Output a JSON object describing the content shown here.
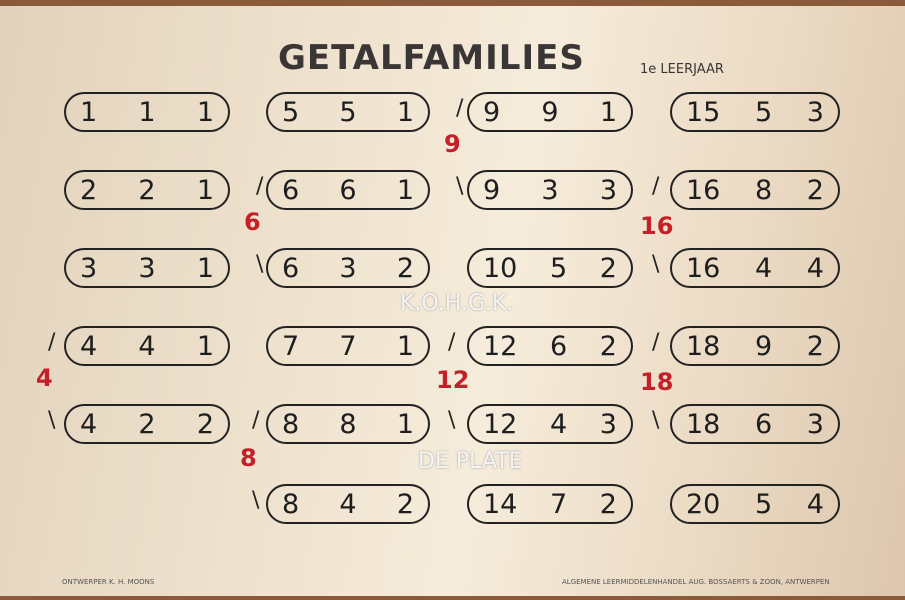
{
  "title": "GETALFAMILIES",
  "grade": "1e LEERJAAR",
  "columns": [
    [
      [
        "1",
        "1",
        "1"
      ],
      [
        "2",
        "2",
        "1"
      ],
      [
        "3",
        "3",
        "1"
      ],
      [
        "4",
        "4",
        "1"
      ],
      [
        "4",
        "2",
        "2"
      ]
    ],
    [
      [
        "5",
        "5",
        "1"
      ],
      [
        "6",
        "6",
        "1"
      ],
      [
        "6",
        "3",
        "2"
      ],
      [
        "7",
        "7",
        "1"
      ],
      [
        "8",
        "8",
        "1"
      ],
      [
        "8",
        "4",
        "2"
      ]
    ],
    [
      [
        "9",
        "9",
        "1"
      ],
      [
        "9",
        "3",
        "3"
      ],
      [
        "10",
        "5",
        "2"
      ],
      [
        "12",
        "6",
        "2"
      ],
      [
        "12",
        "4",
        "3"
      ],
      [
        "14",
        "7",
        "2"
      ]
    ],
    [
      [
        "15",
        "5",
        "3"
      ],
      [
        "16",
        "8",
        "2"
      ],
      [
        "16",
        "4",
        "4"
      ],
      [
        "18",
        "9",
        "2"
      ],
      [
        "18",
        "6",
        "3"
      ],
      [
        "20",
        "5",
        "4"
      ]
    ]
  ],
  "families": [
    "4",
    "6",
    "8",
    "9",
    "12",
    "16",
    "18"
  ],
  "watermark": [
    "K.O.H.G.K.",
    "DE PLATE"
  ],
  "footer": {
    "left": "ONTWERPER K. H. MOONS",
    "right": "ALGEMENE LEERMIDDELENHANDEL AUG. BOSSAERTS & ZOON, ANTWERPEN"
  },
  "colors": {
    "family": "#c4202a",
    "paper": "#efe3cf"
  }
}
